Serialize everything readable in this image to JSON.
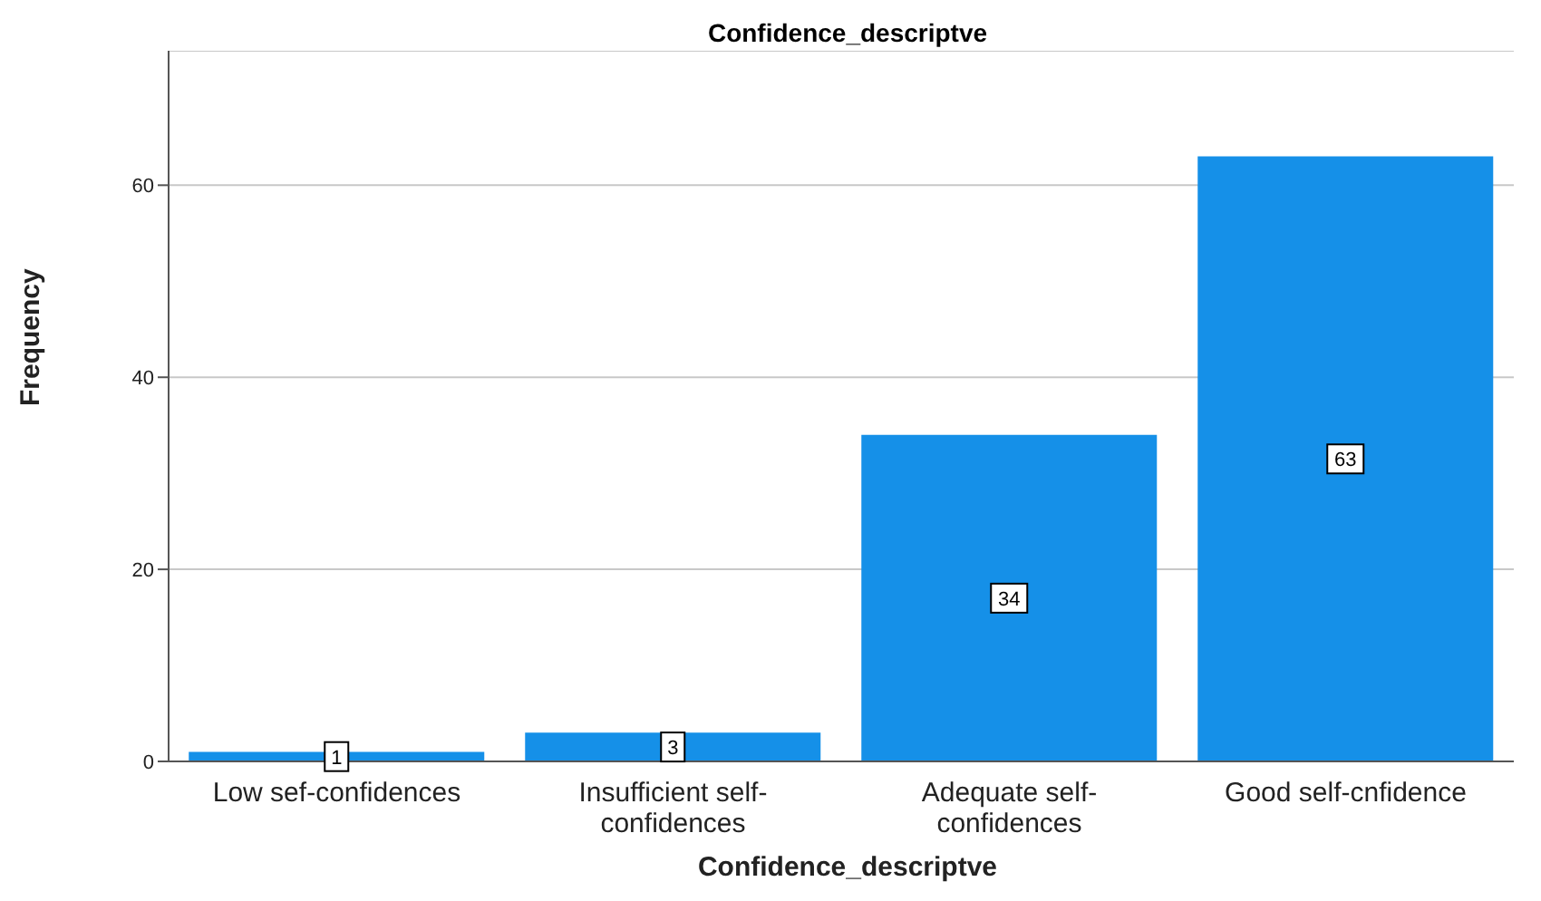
{
  "chart_data": {
    "type": "bar",
    "title": "Confidence_descriptve",
    "xlabel": "Confidence_descriptve",
    "ylabel": "Frequency",
    "categories": [
      "Low sef-confidences",
      "Insufficient self-confidences",
      "Adequate self-confidences",
      "Good self-cnfidence"
    ],
    "values": [
      1,
      3,
      34,
      63
    ],
    "color": "#1590e8",
    "ylim": [
      0,
      74
    ],
    "yticks": [
      0,
      20,
      40,
      60
    ],
    "grid": "y",
    "data_labels": true
  }
}
